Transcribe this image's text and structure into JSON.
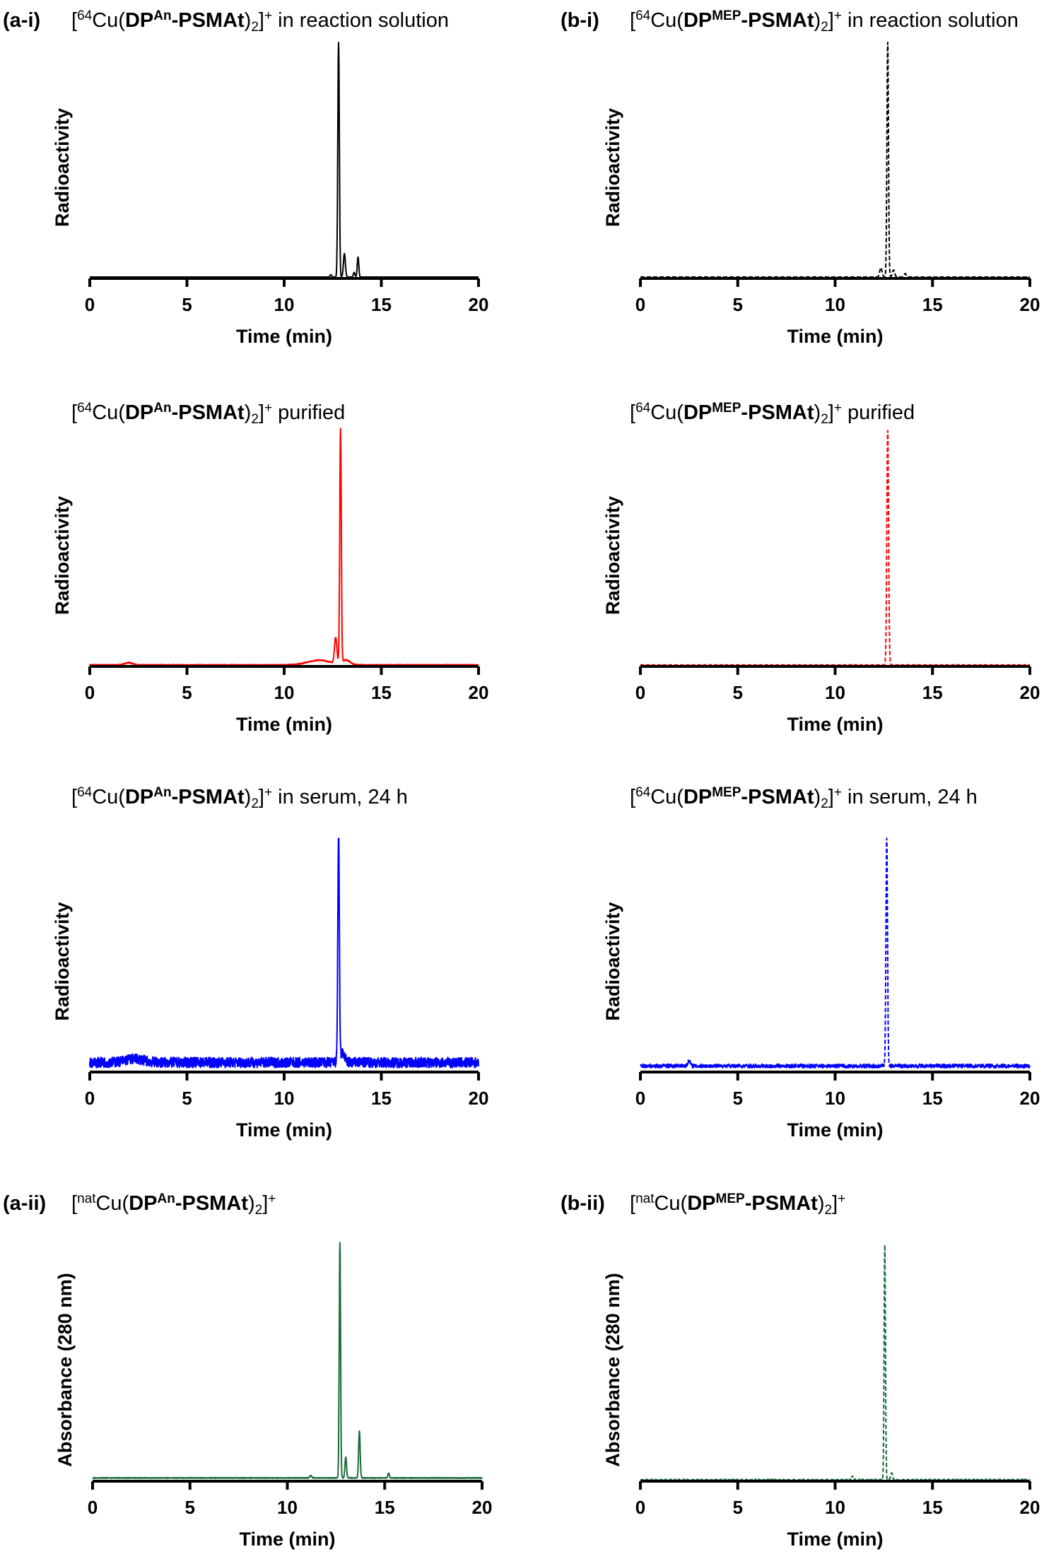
{
  "chart_data": [
    {
      "id": "a-i-reaction",
      "type": "line",
      "panel_label": "(a-i)",
      "title_parts": [
        {
          "t": "["
        },
        {
          "t": "64",
          "s": "sup"
        },
        {
          "t": "Cu("
        },
        {
          "t": "DP",
          "b": true
        },
        {
          "t": "An",
          "s": "sup",
          "b": true
        },
        {
          "t": "-PSMAt",
          "b": true
        },
        {
          "t": ")"
        },
        {
          "t": "2",
          "s": "sub"
        },
        {
          "t": "]"
        },
        {
          "t": "+",
          "s": "sup"
        },
        {
          "t": " in reaction solution"
        }
      ],
      "xlabel": "Time (min)",
      "ylabel": "Radioactivity",
      "xlim": [
        0,
        20
      ],
      "xticks": [
        0,
        5,
        10,
        15,
        20
      ],
      "ylim": [
        0,
        100
      ],
      "color": "#000000",
      "dashed": false,
      "noise": 0,
      "peaks": [
        {
          "t": 12.4,
          "h": 1,
          "w": 0.04
        },
        {
          "t": 12.8,
          "h": 100,
          "w": 0.04
        },
        {
          "t": 13.1,
          "h": 10,
          "w": 0.05
        },
        {
          "t": 13.6,
          "h": 2,
          "w": 0.04
        },
        {
          "t": 13.8,
          "h": 8.5,
          "w": 0.04
        }
      ]
    },
    {
      "id": "b-i-reaction",
      "type": "line",
      "panel_label": "(b-i)",
      "title_parts": [
        {
          "t": "["
        },
        {
          "t": "64",
          "s": "sup"
        },
        {
          "t": "Cu("
        },
        {
          "t": "DP",
          "b": true
        },
        {
          "t": "MEP",
          "s": "sup",
          "b": true
        },
        {
          "t": "-PSMAt",
          "b": true
        },
        {
          "t": ")"
        },
        {
          "t": "2",
          "s": "sub"
        },
        {
          "t": "]"
        },
        {
          "t": "+",
          "s": "sup"
        },
        {
          "t": " in reaction solution"
        }
      ],
      "xlabel": "Time (min)",
      "ylabel": "Radioactivity",
      "xlim": [
        0,
        20
      ],
      "xticks": [
        0,
        5,
        10,
        15,
        20
      ],
      "ylim": [
        0,
        100
      ],
      "color": "#000000",
      "dashed": true,
      "noise": 0,
      "peaks": [
        {
          "t": 12.35,
          "h": 4,
          "w": 0.06
        },
        {
          "t": 12.7,
          "h": 100,
          "w": 0.04
        },
        {
          "t": 13.0,
          "h": 3,
          "w": 0.06
        },
        {
          "t": 13.6,
          "h": 1.5,
          "w": 0.05
        }
      ]
    },
    {
      "id": "a-purified",
      "type": "line",
      "panel_label": "",
      "title_parts": [
        {
          "t": "["
        },
        {
          "t": "64",
          "s": "sup"
        },
        {
          "t": "Cu("
        },
        {
          "t": "DP",
          "b": true
        },
        {
          "t": "An",
          "s": "sup",
          "b": true
        },
        {
          "t": "-PSMAt",
          "b": true
        },
        {
          "t": ")"
        },
        {
          "t": "2",
          "s": "sub"
        },
        {
          "t": "]"
        },
        {
          "t": "+",
          "s": "sup"
        },
        {
          "t": " purified"
        }
      ],
      "xlabel": "Time (min)",
      "ylabel": "Radioactivity",
      "xlim": [
        0,
        20
      ],
      "xticks": [
        0,
        5,
        10,
        15,
        20
      ],
      "ylim": [
        0,
        100
      ],
      "color": "#ff0000",
      "dashed": false,
      "noise": 0.2,
      "peaks": [
        {
          "t": 2,
          "h": 1,
          "w": 0.2
        },
        {
          "t": 11.8,
          "h": 2,
          "w": 0.6
        },
        {
          "t": 12.65,
          "h": 11,
          "w": 0.06
        },
        {
          "t": 12.9,
          "h": 100,
          "w": 0.04
        },
        {
          "t": 13.2,
          "h": 2,
          "w": 0.2
        }
      ]
    },
    {
      "id": "b-purified",
      "type": "line",
      "panel_label": "",
      "title_parts": [
        {
          "t": "["
        },
        {
          "t": "64",
          "s": "sup"
        },
        {
          "t": "Cu("
        },
        {
          "t": "DP",
          "b": true
        },
        {
          "t": "MEP",
          "s": "sup",
          "b": true
        },
        {
          "t": "-PSMAt",
          "b": true
        },
        {
          "t": ")"
        },
        {
          "t": "2",
          "s": "sub"
        },
        {
          "t": "]"
        },
        {
          "t": "+",
          "s": "sup"
        },
        {
          "t": " purified"
        }
      ],
      "xlabel": "Time (min)",
      "ylabel": "Radioactivity",
      "xlim": [
        0,
        20
      ],
      "xticks": [
        0,
        5,
        10,
        15,
        20
      ],
      "ylim": [
        0,
        100
      ],
      "color": "#ff0000",
      "dashed": true,
      "noise": 0.1,
      "peaks": [
        {
          "t": 12.7,
          "h": 100,
          "w": 0.045
        }
      ]
    },
    {
      "id": "a-serum",
      "type": "line",
      "panel_label": "",
      "title_parts": [
        {
          "t": "["
        },
        {
          "t": "64",
          "s": "sup"
        },
        {
          "t": "Cu("
        },
        {
          "t": "DP",
          "b": true
        },
        {
          "t": "An",
          "s": "sup",
          "b": true
        },
        {
          "t": "-PSMAt",
          "b": true
        },
        {
          "t": ")"
        },
        {
          "t": "2",
          "s": "sub"
        },
        {
          "t": "]"
        },
        {
          "t": "+",
          "s": "sup"
        },
        {
          "t": " in serum, 24 h"
        }
      ],
      "xlabel": "Time (min)",
      "ylabel": "Radioactivity",
      "xlim": [
        0,
        20
      ],
      "xticks": [
        0,
        5,
        10,
        15,
        20
      ],
      "ylim": [
        0,
        100
      ],
      "color": "#0000ff",
      "dashed": false,
      "noise": 2.2,
      "peaks": [
        {
          "t": 0,
          "h": 3.5,
          "w": 100
        },
        {
          "t": 2.3,
          "h": 1.5,
          "w": 0.5
        },
        {
          "t": 12.8,
          "h": 96,
          "w": 0.04
        },
        {
          "t": 13.0,
          "h": 4,
          "w": 0.12
        }
      ]
    },
    {
      "id": "b-serum",
      "type": "line",
      "panel_label": "",
      "title_parts": [
        {
          "t": "["
        },
        {
          "t": "64",
          "s": "sup"
        },
        {
          "t": "Cu("
        },
        {
          "t": "DP",
          "b": true
        },
        {
          "t": "MEP",
          "s": "sup",
          "b": true
        },
        {
          "t": "-PSMAt",
          "b": true
        },
        {
          "t": ")"
        },
        {
          "t": "2",
          "s": "sub"
        },
        {
          "t": "]"
        },
        {
          "t": "+",
          "s": "sup"
        },
        {
          "t": " in serum, 24 h"
        }
      ],
      "xlabel": "Time (min)",
      "ylabel": "Radioactivity",
      "xlim": [
        0,
        20
      ],
      "xticks": [
        0,
        5,
        10,
        15,
        20
      ],
      "ylim": [
        0,
        100
      ],
      "color": "#0000ff",
      "dashed": true,
      "noise": 0.8,
      "peaks": [
        {
          "t": 0,
          "h": 2,
          "w": 100
        },
        {
          "t": 2.5,
          "h": 2.5,
          "w": 0.06
        },
        {
          "t": 12.65,
          "h": 98,
          "w": 0.04
        }
      ]
    },
    {
      "id": "a-ii-nat",
      "type": "line",
      "panel_label": "(a-ii)",
      "title_parts": [
        {
          "t": "["
        },
        {
          "t": "nat",
          "s": "sup"
        },
        {
          "t": "Cu("
        },
        {
          "t": "DP",
          "b": true
        },
        {
          "t": "An",
          "s": "sup",
          "b": true
        },
        {
          "t": "-PSMAt",
          "b": true
        },
        {
          "t": ")"
        },
        {
          "t": "2",
          "s": "sub"
        },
        {
          "t": "]"
        },
        {
          "t": "+",
          "s": "sup"
        }
      ],
      "xlabel": "Time (min)",
      "ylabel": "Absorbance (280 nm)",
      "xlim": [
        0,
        20
      ],
      "xticks": [
        0,
        5,
        10,
        15,
        20
      ],
      "ylim": [
        0,
        100
      ],
      "color": "#1a6b3a",
      "dashed": false,
      "noise": 0.15,
      "peaks": [
        {
          "t": 0,
          "h": 0.8,
          "w": 100
        },
        {
          "t": 11.2,
          "h": 1,
          "w": 0.05
        },
        {
          "t": 12.7,
          "h": 100,
          "w": 0.035
        },
        {
          "t": 13.0,
          "h": 9,
          "w": 0.04
        },
        {
          "t": 13.7,
          "h": 20,
          "w": 0.04
        },
        {
          "t": 15.2,
          "h": 2,
          "w": 0.04
        }
      ]
    },
    {
      "id": "b-ii-nat",
      "type": "line",
      "panel_label": "(b-ii)",
      "title_parts": [
        {
          "t": "["
        },
        {
          "t": "nat",
          "s": "sup"
        },
        {
          "t": "Cu("
        },
        {
          "t": "DP",
          "b": true
        },
        {
          "t": "MEP",
          "s": "sup",
          "b": true
        },
        {
          "t": "-PSMAt",
          "b": true
        },
        {
          "t": ")"
        },
        {
          "t": "2",
          "s": "sub"
        },
        {
          "t": "]"
        },
        {
          "t": "+",
          "s": "sup"
        }
      ],
      "xlabel": "Time (min)",
      "ylabel": "Absorbance (280 nm)",
      "xlim": [
        0,
        20
      ],
      "xticks": [
        0,
        5,
        10,
        15,
        20
      ],
      "ylim": [
        0,
        100
      ],
      "color": "#1a6b3a",
      "dashed": true,
      "noise": 0.2,
      "peaks": [
        {
          "t": 10.9,
          "h": 1.5,
          "w": 0.05
        },
        {
          "t": 12.55,
          "h": 100,
          "w": 0.035
        },
        {
          "t": 12.9,
          "h": 3,
          "w": 0.05
        }
      ]
    }
  ]
}
